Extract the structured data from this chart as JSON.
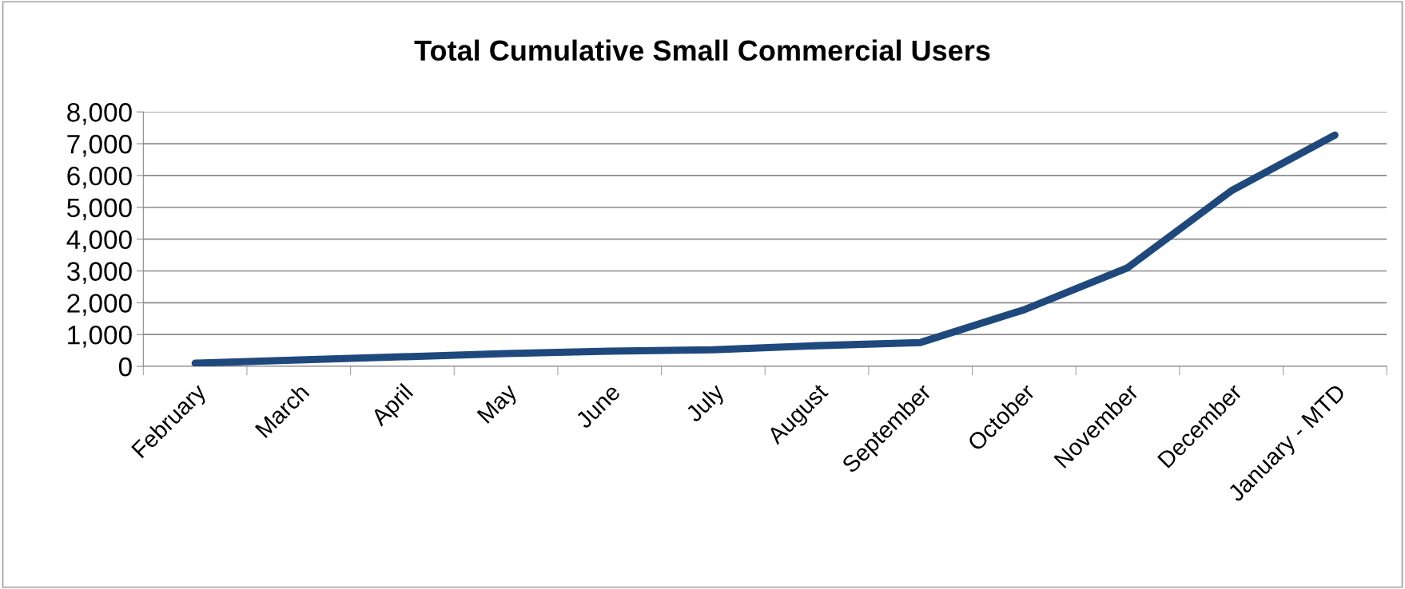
{
  "chart_data": {
    "type": "line",
    "title": "Total Cumulative Small Commercial Users",
    "categories": [
      "February",
      "March",
      "April",
      "May",
      "June",
      "July",
      "August",
      "September",
      "October",
      "November",
      "December",
      "January - MTD"
    ],
    "series": [
      {
        "color": "#1f497d",
        "values": [
          100,
          200,
          300,
          400,
          480,
          520,
          650,
          750,
          1780,
          3100,
          5520,
          7270
        ]
      }
    ],
    "ylim": [
      0,
      8000
    ],
    "yticks": [
      {
        "value": 0,
        "label": "0"
      },
      {
        "value": 1000,
        "label": "1,000"
      },
      {
        "value": 2000,
        "label": "2,000"
      },
      {
        "value": 3000,
        "label": "3,000"
      },
      {
        "value": 4000,
        "label": "4,000"
      },
      {
        "value": 5000,
        "label": "5,000"
      },
      {
        "value": 6000,
        "label": "6,000"
      },
      {
        "value": 7000,
        "label": "7,000"
      },
      {
        "value": 8000,
        "label": "8,000"
      }
    ],
    "grid": "y",
    "legend": false,
    "marker": "none",
    "line_style": "solid"
  }
}
